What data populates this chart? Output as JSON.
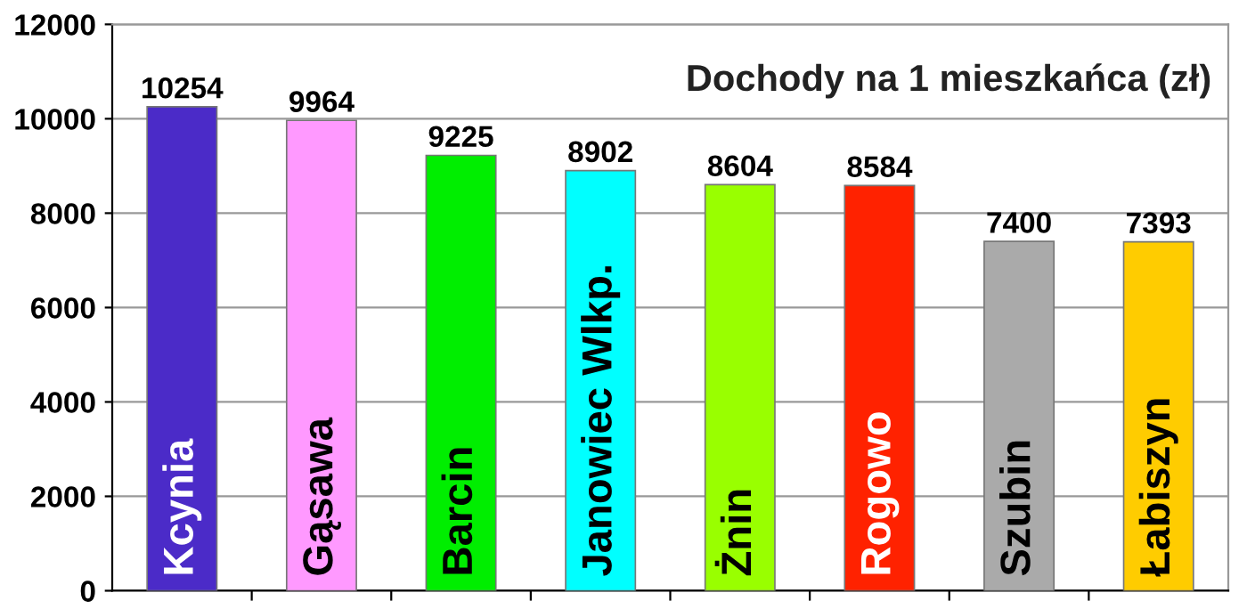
{
  "chart_data": {
    "type": "bar",
    "title": "Dochody na 1 mieszkańca (zł)",
    "categories": [
      "Kcynia",
      "Gąsawa",
      "Barcin",
      "Janowiec Wlkp.",
      "Żnin",
      "Rogowo",
      "Szubin",
      "Łabiszyn"
    ],
    "values": [
      10254,
      9964,
      9225,
      8902,
      8604,
      8584,
      7400,
      7393
    ],
    "colors": [
      "#4b2bc8",
      "#ff99ff",
      "#00ee00",
      "#00ffff",
      "#99ff00",
      "#ff2200",
      "#aaaaaa",
      "#ffcc00"
    ],
    "ylim": [
      0,
      12000
    ],
    "yticks": [
      0,
      2000,
      4000,
      6000,
      8000,
      10000,
      12000
    ],
    "grid": "y",
    "data_labels": true,
    "legend": false
  }
}
